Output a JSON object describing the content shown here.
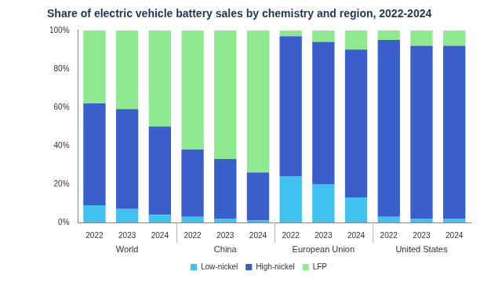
{
  "chart_data": {
    "type": "bar",
    "title": "Share of electric vehicle battery sales by chemistry and region, 2022-2024",
    "categories": [
      "2022",
      "2023",
      "2024",
      "2022",
      "2023",
      "2024",
      "2022",
      "2023",
      "2024",
      "2022",
      "2023",
      "2024"
    ],
    "groups": [
      "World",
      "China",
      "European Union",
      "United States"
    ],
    "series": [
      {
        "name": "Low-nickel",
        "color": "#3fc3ee",
        "values": [
          9,
          7,
          4,
          3,
          2,
          1,
          24,
          20,
          13,
          3,
          2,
          2
        ]
      },
      {
        "name": "High-nickel",
        "color": "#3a5fcd",
        "values": [
          53,
          52,
          46,
          35,
          31,
          25,
          73,
          74,
          77,
          92,
          90,
          90
        ]
      },
      {
        "name": "LFP",
        "color": "#8fe98f",
        "values": [
          38,
          41,
          50,
          62,
          67,
          74,
          3,
          6,
          10,
          5,
          8,
          8
        ]
      }
    ],
    "ylim": [
      0,
      100
    ],
    "yticks": [
      {
        "value": 0,
        "label": "0%"
      },
      {
        "value": 20,
        "label": "20%"
      },
      {
        "value": 40,
        "label": "40%"
      },
      {
        "value": 60,
        "label": "60%"
      },
      {
        "value": 80,
        "label": "80%"
      },
      {
        "value": 100,
        "label": "100%"
      }
    ],
    "stacked": true,
    "grid": false,
    "legend": "bottom"
  }
}
